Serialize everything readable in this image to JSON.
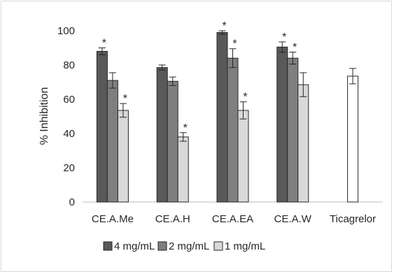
{
  "chart_data": {
    "type": "bar",
    "title": "",
    "xlabel": "",
    "ylabel": "% Inhibition",
    "ylim": [
      0,
      100
    ],
    "yticks": [
      0,
      20,
      40,
      60,
      80,
      100
    ],
    "grid": false,
    "legend_position": "bottom",
    "categories": [
      "CE.A.Me",
      "CE.A.H",
      "CE.A.EA",
      "CE.A.W",
      "Ticagrelor"
    ],
    "series": [
      {
        "name": "4 mg/mL",
        "color": "#595959",
        "values": [
          88,
          78.5,
          99,
          90.5,
          null
        ],
        "errors": [
          2,
          1.5,
          1,
          3,
          null
        ],
        "significance": [
          "*",
          "",
          "*",
          "*",
          ""
        ]
      },
      {
        "name": "2 mg/mL",
        "color": "#7f7f7f",
        "values": [
          71,
          70.5,
          84,
          84,
          null
        ],
        "errors": [
          4.5,
          2.5,
          5.5,
          3.5,
          null
        ],
        "significance": [
          "",
          "",
          "*",
          "*",
          ""
        ]
      },
      {
        "name": "1 mg/mL",
        "color": "#d9d9d9",
        "values": [
          53.5,
          38,
          53.5,
          68.5,
          null
        ],
        "errors": [
          4,
          2.5,
          5,
          7,
          null
        ],
        "significance": [
          "*",
          "*",
          "*",
          "",
          ""
        ]
      }
    ],
    "reference": {
      "category": "Ticagrelor",
      "value": 73.5,
      "error": 4.5,
      "color": "#ffffff"
    }
  }
}
